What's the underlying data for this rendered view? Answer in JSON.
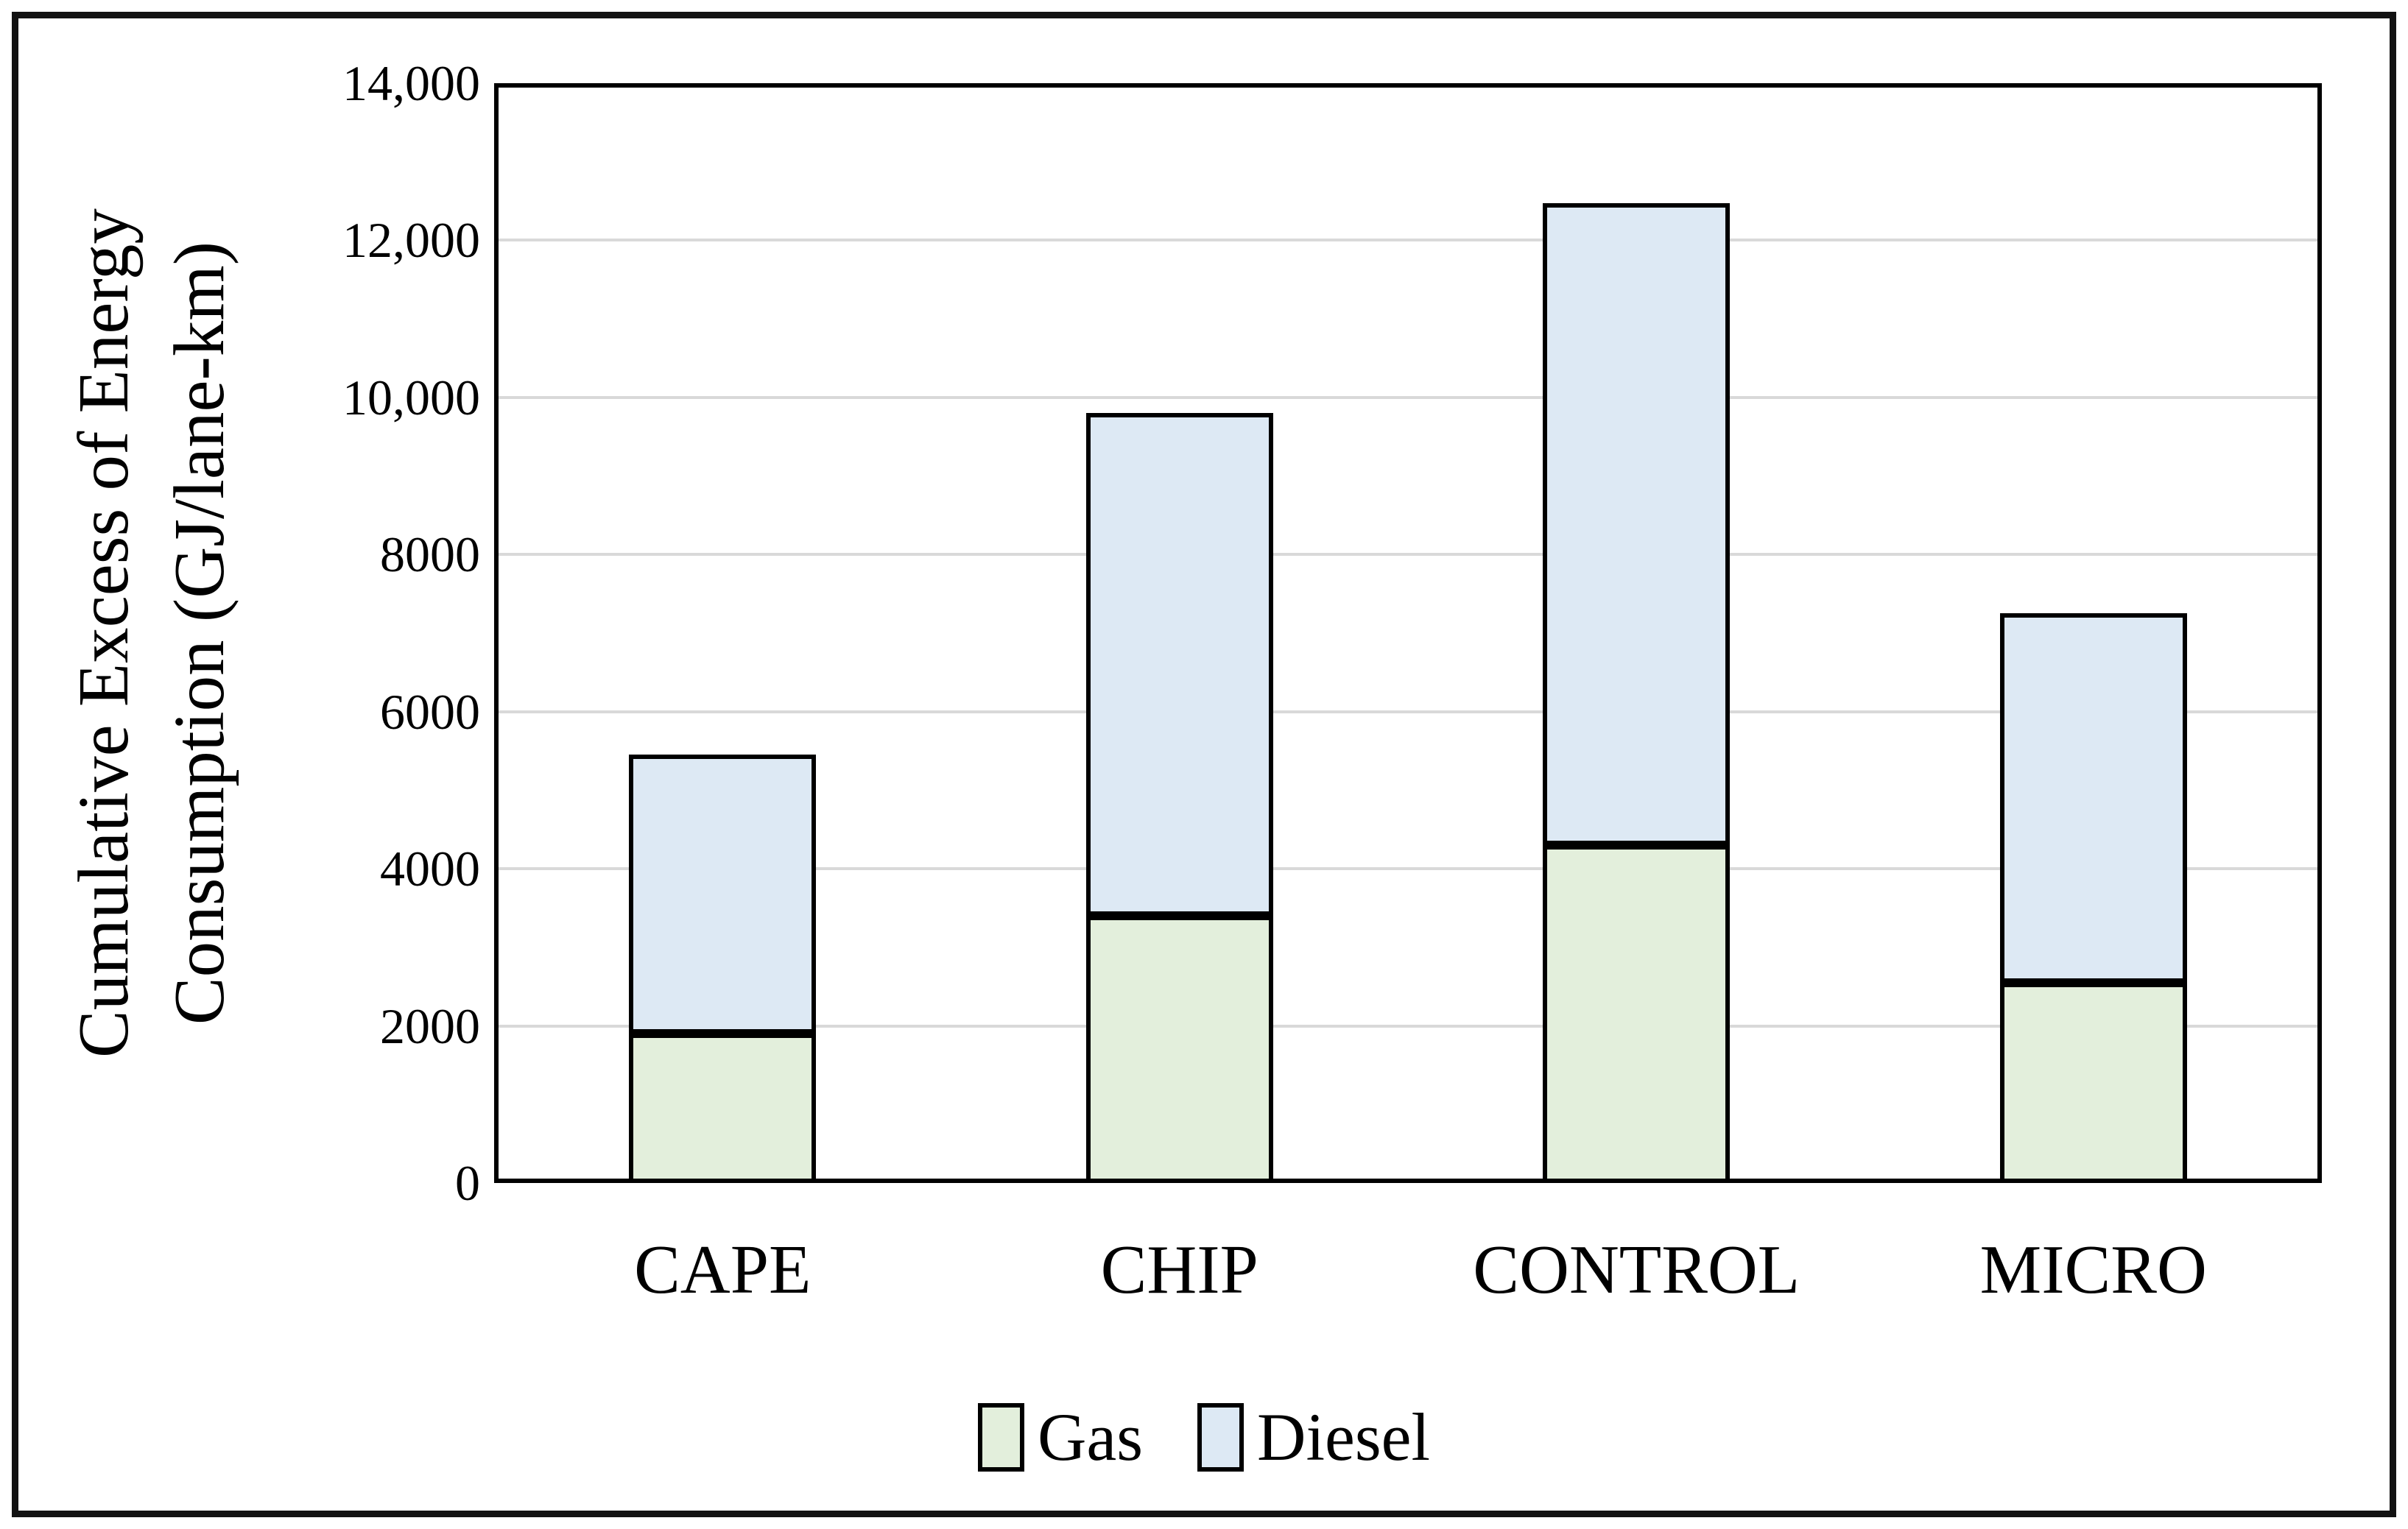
{
  "chart_data": {
    "type": "bar",
    "stacked": true,
    "categories": [
      "CAPE",
      "CHIP",
      "CONTROL",
      "MICRO"
    ],
    "series": [
      {
        "name": "Gas",
        "color": "#e3efdc",
        "values": [
          1900,
          3400,
          4300,
          2550
        ]
      },
      {
        "name": "Diesel",
        "color": "#dde9f4",
        "values": [
          3550,
          6400,
          8170,
          4700
        ]
      }
    ],
    "stack_totals": [
      5450,
      9800,
      12470,
      7250
    ],
    "ylabel": "Cumulative Excess of Energy Consumption (GJ/lane-km)",
    "ylabel_lines": [
      "Cumulative Excess of  Energy",
      "Consumption (GJ/lane-km)"
    ],
    "xlabel": "",
    "title": "",
    "ylim": [
      0,
      14000
    ],
    "ytick_interval": 2000,
    "ytick_labels": [
      "0",
      "2000",
      "4000",
      "6000",
      "8000",
      "10,000",
      "12,000",
      "14,000"
    ],
    "grid": true,
    "legend_position": "bottom",
    "legend_entries": [
      "Gas",
      "Diesel"
    ]
  },
  "styles": {
    "gridline_color": "#d9d9d9",
    "axis_border_color": "#000000",
    "bar_border_color": "#000000",
    "figure_border_color": "#121212",
    "background": "#ffffff",
    "text_color": "#000000"
  }
}
